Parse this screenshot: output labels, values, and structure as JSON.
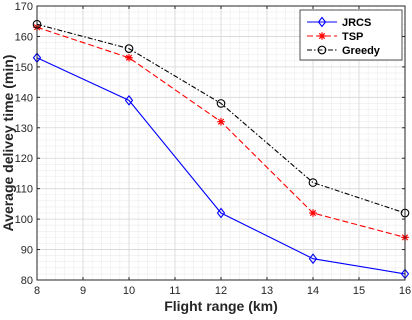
{
  "chart_data": {
    "type": "line",
    "xlabel": "Flight range (km)",
    "ylabel": "Average delivey time (min)",
    "xlim": [
      8,
      16
    ],
    "ylim": [
      80,
      170
    ],
    "xticks": [
      8,
      9,
      10,
      11,
      12,
      13,
      14,
      15,
      16
    ],
    "yticks": [
      80,
      90,
      100,
      110,
      120,
      130,
      140,
      150,
      160,
      170
    ],
    "grid": true,
    "minor_grid": true,
    "legend_position": "top-right",
    "series": [
      {
        "name": "JRCS",
        "color": "#0000ff",
        "dash": "solid",
        "marker": "diamond",
        "x": [
          8,
          10,
          12,
          14,
          16
        ],
        "y": [
          153,
          139,
          102,
          87,
          82
        ]
      },
      {
        "name": "TSP",
        "color": "#ff0000",
        "dash": "dashed",
        "marker": "asterisk",
        "x": [
          8,
          10,
          12,
          14,
          16
        ],
        "y": [
          163,
          153,
          132,
          102,
          94
        ]
      },
      {
        "name": "Greedy",
        "color": "#000000",
        "dash": "dashdot",
        "marker": "circle",
        "x": [
          8,
          10,
          12,
          14,
          16
        ],
        "y": [
          164,
          156,
          138,
          112,
          102
        ]
      }
    ]
  }
}
